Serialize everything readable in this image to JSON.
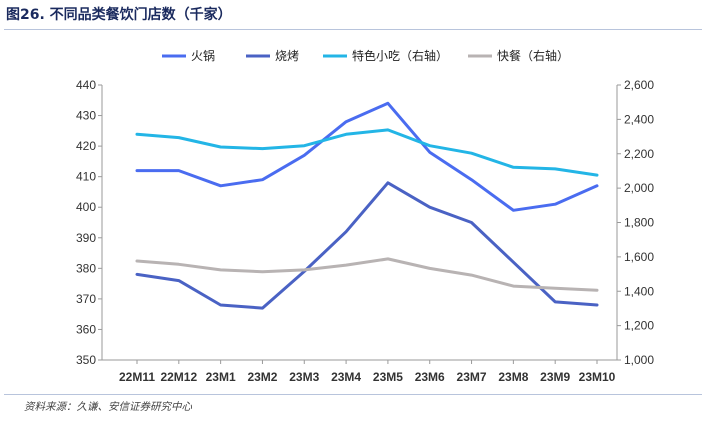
{
  "figure": {
    "title": "图26. 不同品类餐饮门店数（千家）",
    "source": "资料来源：久谦、安信证券研究中心"
  },
  "chart_data": {
    "type": "line",
    "title": "不同品类餐饮门店数（千家）",
    "categories": [
      "22M11",
      "22M12",
      "23M1",
      "23M2",
      "23M3",
      "23M4",
      "23M5",
      "23M6",
      "23M7",
      "23M8",
      "23M9",
      "23M10"
    ],
    "left_axis": {
      "ylim": [
        350,
        440
      ],
      "ticks": [
        "440",
        "430",
        "420",
        "410",
        "400",
        "390",
        "380",
        "370",
        "360",
        "350"
      ]
    },
    "right_axis": {
      "ylim": [
        1000,
        2600
      ],
      "ticks": [
        "2,600",
        "2,400",
        "2,200",
        "2,000",
        "1,800",
        "1,600",
        "1,400",
        "1,200",
        "1,000"
      ]
    },
    "series": [
      {
        "name": "火锅",
        "axis": "left",
        "color": "#4a6cf0",
        "values": [
          412,
          412,
          407,
          409,
          417,
          428,
          434,
          418,
          409,
          399,
          401,
          407
        ]
      },
      {
        "name": "烧烤",
        "axis": "left",
        "color": "#4a62c4",
        "values": [
          378,
          376,
          368,
          367,
          379,
          392,
          408,
          400,
          395,
          382,
          369,
          368
        ]
      },
      {
        "name": "特色小吃（右轴）",
        "axis": "right",
        "color": "#23b5e6",
        "values": [
          2313,
          2294,
          2239,
          2230,
          2247,
          2313,
          2339,
          2247,
          2203,
          2121,
          2112,
          2076
        ]
      },
      {
        "name": "快餐（右轴）",
        "axis": "right",
        "color": "#b8b3b3",
        "values": [
          1576,
          1557,
          1524,
          1514,
          1524,
          1552,
          1588,
          1533,
          1494,
          1430,
          1418,
          1406
        ]
      }
    ],
    "legend_position": "top-center",
    "grid": false
  }
}
